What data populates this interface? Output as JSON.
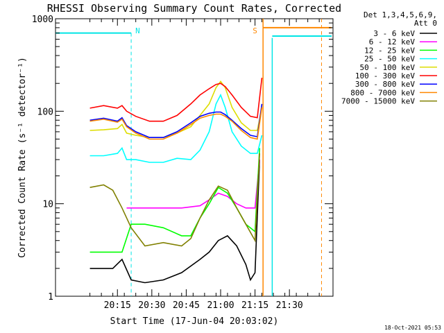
{
  "chart_data": {
    "type": "line",
    "title": "RHESSI Observing Summary Count Rates, Corrected",
    "xlabel": "Start Time (17-Jun-04 20:03:02)",
    "ylabel": "Corrected Count Rate (s⁻¹ detector⁻¹)",
    "y_scale": "log",
    "ylim": [
      1,
      1000
    ],
    "xlim_minutes": [
      0,
      45
    ],
    "x_ticks": [
      {
        "label": "20:15",
        "minutes": 12
      },
      {
        "label": "20:30",
        "minutes": 27
      },
      {
        "label": "20:45",
        "minutes": 42
      },
      {
        "label": "21:00",
        "minutes": 57
      },
      {
        "label": "21:15",
        "minutes": 72
      },
      {
        "label": "21:30",
        "minutes": 87
      }
    ],
    "y_ticks": [
      {
        "label": "1",
        "value": 1
      },
      {
        "label": "10",
        "value": 10
      },
      {
        "label": "100",
        "value": 100
      },
      {
        "label": "1000",
        "value": 1000
      }
    ],
    "legend_header": [
      "Det 1,3,4,5,6,9,",
      "Att 0"
    ],
    "legend_position": "right",
    "annotations": [
      {
        "text": "N",
        "color": "#00e5e5",
        "x_min": 18
      },
      {
        "text": "S",
        "color": "#ff8800",
        "x_min": 74
      }
    ],
    "series": [
      {
        "name": "3 - 6 keV",
        "color": "#000000",
        "x": [
          0,
          10,
          14,
          18,
          24,
          32,
          40,
          48,
          52,
          56,
          60,
          64,
          68,
          70,
          72,
          74
        ],
        "y": [
          2,
          2,
          2.5,
          1.5,
          1.4,
          1.5,
          1.8,
          2.5,
          3,
          4,
          4.5,
          3.5,
          2.2,
          1.5,
          1.8,
          30
        ]
      },
      {
        "name": "6 - 12 keV",
        "color": "#ff00ff",
        "x": [
          16,
          24,
          32,
          40,
          48,
          52,
          56,
          60,
          64,
          68,
          72,
          74
        ],
        "y": [
          9,
          9,
          9,
          9,
          9.5,
          11,
          13,
          12,
          10,
          9,
          9,
          30
        ]
      },
      {
        "name": "12 - 25 keV",
        "color": "#00ff00",
        "x": [
          0,
          10,
          14,
          18,
          24,
          32,
          40,
          44,
          48,
          52,
          56,
          60,
          64,
          68,
          72,
          74
        ],
        "y": [
          3,
          3,
          3,
          6,
          6,
          5.5,
          4.5,
          4.5,
          7,
          10,
          15,
          13,
          9,
          6,
          5,
          40
        ]
      },
      {
        "name": "25 - 50 keV",
        "color": "#00ffff",
        "x": [
          0,
          6,
          12,
          14,
          16,
          20,
          26,
          32,
          38,
          44,
          48,
          52,
          55,
          57,
          59,
          62,
          66,
          70,
          73,
          75
        ],
        "y": [
          33,
          33,
          35,
          40,
          30,
          30,
          28,
          28,
          31,
          30,
          38,
          60,
          120,
          150,
          110,
          60,
          42,
          35,
          35,
          55
        ]
      },
      {
        "name": "50 - 100 keV",
        "color": "#dddd00",
        "x": [
          0,
          6,
          12,
          14,
          16,
          20,
          26,
          32,
          38,
          44,
          48,
          52,
          55,
          57,
          59,
          62,
          66,
          70,
          73,
          75
        ],
        "y": [
          62,
          63,
          65,
          72,
          58,
          55,
          52,
          52,
          58,
          68,
          90,
          120,
          180,
          210,
          180,
          110,
          75,
          62,
          62,
          110
        ]
      },
      {
        "name": "100 - 300 keV",
        "color": "#ff0000",
        "x": [
          0,
          6,
          12,
          14,
          16,
          20,
          26,
          32,
          38,
          44,
          48,
          52,
          55,
          57,
          59,
          62,
          66,
          70,
          73,
          75
        ],
        "y": [
          108,
          115,
          108,
          115,
          100,
          88,
          78,
          78,
          90,
          120,
          150,
          175,
          195,
          200,
          185,
          150,
          110,
          88,
          85,
          230
        ]
      },
      {
        "name": "300 - 800 keV",
        "color": "#0000ff",
        "x": [
          0,
          6,
          12,
          14,
          16,
          20,
          26,
          32,
          38,
          44,
          48,
          52,
          55,
          57,
          59,
          62,
          66,
          70,
          73,
          75
        ],
        "y": [
          80,
          84,
          78,
          85,
          70,
          60,
          52,
          52,
          60,
          75,
          88,
          95,
          98,
          98,
          92,
          80,
          65,
          55,
          53,
          120
        ]
      },
      {
        "name": "800 - 7000 keV",
        "color": "#ff8800",
        "x": [
          0,
          6,
          12,
          14,
          16,
          20,
          26,
          32,
          38,
          44,
          48,
          52,
          55,
          57,
          59,
          62,
          66,
          70,
          73,
          75
        ],
        "y": [
          78,
          82,
          76,
          82,
          68,
          58,
          50,
          50,
          58,
          72,
          84,
          90,
          93,
          93,
          88,
          78,
          62,
          52,
          50,
          110
        ]
      },
      {
        "name": "7000 - 15000 keV",
        "color": "#808000",
        "x": [
          0,
          6,
          10,
          14,
          18,
          24,
          32,
          40,
          44,
          48,
          52,
          56,
          60,
          64,
          68,
          72,
          74
        ],
        "y": [
          15,
          16,
          14,
          9,
          5.5,
          3.5,
          3.8,
          3.5,
          4.2,
          7,
          11,
          15.5,
          14,
          9,
          6,
          4,
          35
        ]
      }
    ]
  },
  "footer": {
    "timestamp": "18-Oct-2021 05:53"
  }
}
